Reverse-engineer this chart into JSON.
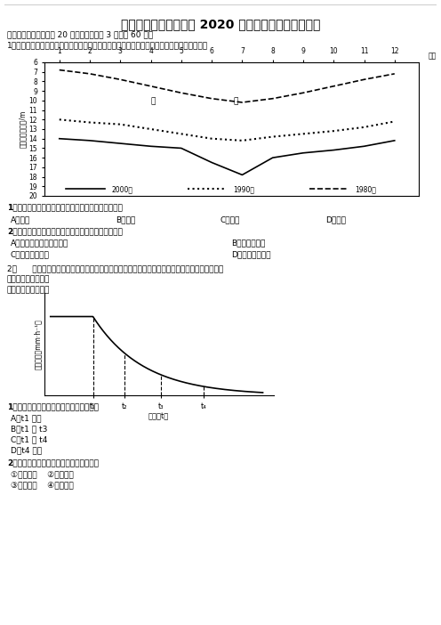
{
  "title": "陕西省西安市达标名校 2020 年高考一月地理模拟试卷",
  "section1": "一、单选题（本题包括 20 个小题，每小题 3 分，共 60 分）",
  "q1_intro": "1．下图是华北平原地区某城市附近监测点的地下水埋藏深度变化曲线图，读图完成下列小题。",
  "chart1_ylabel": "地下水埋藏深度/m",
  "chart1_xlabel_right": "月份",
  "year2000_y": [
    14.0,
    14.2,
    14.5,
    14.8,
    15.0,
    16.5,
    17.8,
    16.0,
    15.5,
    15.2,
    14.8,
    14.2
  ],
  "year1990_y": [
    12.0,
    12.3,
    12.5,
    13.0,
    13.5,
    14.0,
    14.2,
    13.8,
    13.5,
    13.2,
    12.8,
    12.2
  ],
  "year1980_y": [
    6.8,
    7.2,
    7.8,
    8.5,
    9.2,
    9.8,
    10.2,
    9.8,
    9.2,
    8.5,
    7.8,
    7.2
  ],
  "q1_sub1": "1．据图可知，该监测点附近地区用水量最大的季节是",
  "q1_optA": "A．春季",
  "q1_optB": "B．夏季",
  "q1_optC": "C．秋季",
  "q1_optD": "D．冬季",
  "q1_sub2": "2．下列属于图示地下水埋藏深度明显下降的原因的是",
  "q1_sub2_optA": "A．城市化导致下垫面变化",
  "q1_sub2_optB": "B．降水量减少",
  "q1_sub2_optC": "C．地表径流减少",
  "q1_sub2_optD": "D．农业用水增加",
  "q2_intro": "2．      下图为运用降水模拟器研究的在保持降水强度不变的状况下，土壤入渗率实验数据统计图。",
  "q2_intro2": "测试地区地势平坦。",
  "q2_intro3": "据此完成下面小题。",
  "chart2_ylabel": "入渗率／（mm·h⁻¹）",
  "chart2_xlabel": "时间（t）",
  "q2_sub1": "1．实验中，地表没有出现积水的时间段是",
  "q2_optA": "A．t1 之前",
  "q2_optB": "B．t1 至 t3",
  "q2_optC": "C．t1 至 t4",
  "q2_optD": "D．t4 之后",
  "q2_sub2": "2．下列措施有利于黄土高原水土保持的是",
  "q2_sub2_opt1": "①顺坡耕种    ②增加植被",
  "q2_sub2_opt2": "③秸秆覆盖    ④土壤压实",
  "bg_color": "#ffffff"
}
